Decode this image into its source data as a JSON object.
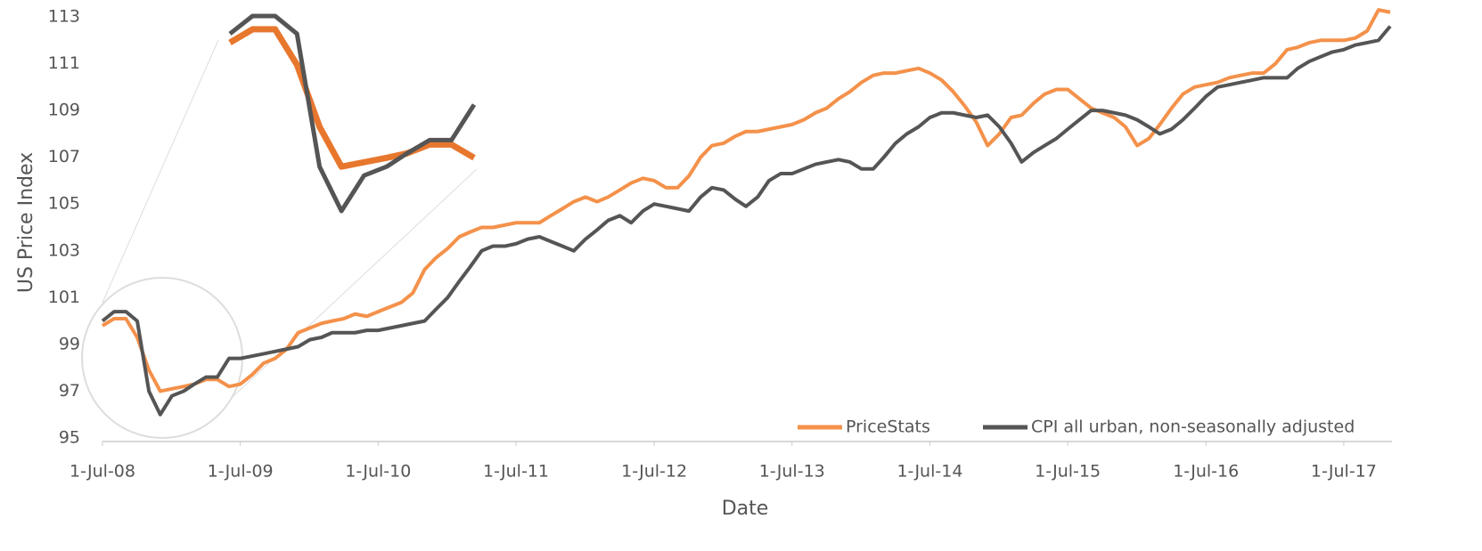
{
  "chart_data": {
    "type": "line",
    "x_label": "Date",
    "y_label": "US Price Index",
    "x": [
      "2008-07-01",
      "2008-08-01",
      "2008-09-01",
      "2008-10-01",
      "2008-11-01",
      "2008-12-01",
      "2009-01-01",
      "2009-02-01",
      "2009-03-01",
      "2009-04-01",
      "2009-05-01",
      "2009-06-01",
      "2009-07-01",
      "2009-08-01",
      "2009-09-01",
      "2009-10-01",
      "2009-11-01",
      "2009-12-01",
      "2010-01-01",
      "2010-02-01",
      "2010-03-01",
      "2010-04-01",
      "2010-05-01",
      "2010-06-01",
      "2010-07-01",
      "2010-08-01",
      "2010-09-01",
      "2010-10-01",
      "2010-11-01",
      "2010-12-01",
      "2011-01-01",
      "2011-02-01",
      "2011-03-01",
      "2011-04-01",
      "2011-05-01",
      "2011-06-01",
      "2011-07-01",
      "2011-08-01",
      "2011-09-01",
      "2011-10-01",
      "2011-11-01",
      "2011-12-01",
      "2012-01-01",
      "2012-02-01",
      "2012-03-01",
      "2012-04-01",
      "2012-05-01",
      "2012-06-01",
      "2012-07-01",
      "2012-08-01",
      "2012-09-01",
      "2012-10-01",
      "2012-11-01",
      "2012-12-01",
      "2013-01-01",
      "2013-02-01",
      "2013-03-01",
      "2013-04-01",
      "2013-05-01",
      "2013-06-01",
      "2013-07-01",
      "2013-08-01",
      "2013-09-01",
      "2013-10-01",
      "2013-11-01",
      "2013-12-01",
      "2014-01-01",
      "2014-02-01",
      "2014-03-01",
      "2014-04-01",
      "2014-05-01",
      "2014-06-01",
      "2014-07-01",
      "2014-08-01",
      "2014-09-01",
      "2014-10-01",
      "2014-11-01",
      "2014-12-01",
      "2015-01-01",
      "2015-02-01",
      "2015-03-01",
      "2015-04-01",
      "2015-05-01",
      "2015-06-01",
      "2015-07-01",
      "2015-08-01",
      "2015-09-01",
      "2015-10-01",
      "2015-11-01",
      "2015-12-01",
      "2016-01-01",
      "2016-02-01",
      "2016-03-01",
      "2016-04-01",
      "2016-05-01",
      "2016-06-01",
      "2016-07-01",
      "2016-08-01",
      "2016-09-01",
      "2016-10-01",
      "2016-11-01",
      "2016-12-01",
      "2017-01-01",
      "2017-02-01",
      "2017-03-01",
      "2017-04-01",
      "2017-05-01",
      "2017-06-01",
      "2017-07-01",
      "2017-08-01",
      "2017-09-01",
      "2017-10-01",
      "2017-11-01"
    ],
    "series": [
      {
        "name": "PriceStats",
        "color": "#f4914a",
        "values": [
          99.8,
          100.1,
          100.1,
          99.3,
          97.9,
          97.0,
          97.1,
          97.2,
          97.3,
          97.5,
          97.5,
          97.2,
          97.3,
          97.7,
          98.2,
          98.4,
          98.8,
          99.5,
          99.7,
          99.9,
          100.0,
          100.1,
          100.3,
          100.2,
          100.4,
          100.6,
          100.8,
          101.2,
          102.2,
          102.7,
          103.1,
          103.6,
          103.8,
          104.0,
          104.0,
          104.1,
          104.2,
          104.2,
          104.2,
          104.5,
          104.8,
          105.1,
          105.3,
          105.1,
          105.3,
          105.6,
          105.9,
          106.1,
          106.0,
          105.7,
          105.7,
          106.2,
          107.0,
          107.5,
          107.6,
          107.9,
          108.1,
          108.1,
          108.2,
          108.3,
          108.4,
          108.6,
          108.9,
          109.1,
          109.5,
          109.8,
          110.2,
          110.5,
          110.6,
          110.6,
          110.7,
          110.8,
          110.6,
          110.3,
          109.8,
          109.2,
          108.5,
          107.5,
          108.0,
          108.7,
          108.8,
          109.3,
          109.7,
          109.9,
          109.9,
          109.5,
          109.1,
          108.9,
          108.7,
          108.3,
          107.5,
          107.8,
          108.4,
          109.1,
          109.7,
          110.0,
          110.1,
          110.2,
          110.4,
          110.5,
          110.6,
          110.6,
          111.0,
          111.6,
          111.7,
          111.9,
          112.0,
          112.0,
          112.0,
          112.1,
          112.4,
          113.3,
          113.2
        ]
      },
      {
        "name": "CPI all urban, non-seasonally adjusted",
        "color": "#555555",
        "values": [
          100.0,
          100.4,
          100.4,
          100.0,
          97.0,
          96.0,
          96.8,
          97.0,
          97.3,
          97.6,
          97.6,
          98.4,
          98.4,
          98.5,
          98.6,
          98.7,
          98.8,
          98.9,
          99.2,
          99.3,
          99.5,
          99.5,
          99.5,
          99.6,
          99.6,
          99.7,
          99.8,
          99.9,
          100.0,
          100.5,
          101.0,
          101.7,
          102.3,
          103.0,
          103.2,
          103.2,
          103.3,
          103.5,
          103.6,
          103.4,
          103.2,
          103.0,
          103.5,
          103.9,
          104.3,
          104.5,
          104.2,
          104.7,
          105.0,
          104.9,
          104.8,
          104.7,
          105.3,
          105.7,
          105.6,
          105.2,
          104.9,
          105.3,
          106.0,
          106.3,
          106.3,
          106.5,
          106.7,
          106.8,
          106.9,
          106.8,
          106.5,
          106.5,
          107.0,
          107.6,
          108.0,
          108.3,
          108.7,
          108.9,
          108.9,
          108.8,
          108.7,
          108.8,
          108.3,
          107.6,
          106.8,
          107.2,
          107.5,
          107.8,
          108.2,
          108.6,
          109.0,
          109.0,
          108.9,
          108.8,
          108.6,
          108.3,
          108.0,
          108.2,
          108.6,
          109.1,
          109.6,
          110.0,
          110.1,
          110.2,
          110.3,
          110.4,
          110.4,
          110.4,
          110.8,
          111.1,
          111.3,
          111.5,
          111.6,
          111.8,
          111.9,
          112.0,
          112.6
        ]
      }
    ],
    "xlim": [
      "2008-07-01",
      "2017-11-01"
    ],
    "xticks": [
      {
        "value": "2008-07-01",
        "label": "1-Jul-08"
      },
      {
        "value": "2009-07-01",
        "label": "1-Jul-09"
      },
      {
        "value": "2010-07-01",
        "label": "1-Jul-10"
      },
      {
        "value": "2011-07-01",
        "label": "1-Jul-11"
      },
      {
        "value": "2012-07-01",
        "label": "1-Jul-12"
      },
      {
        "value": "2013-07-01",
        "label": "1-Jul-13"
      },
      {
        "value": "2014-07-01",
        "label": "1-Jul-14"
      },
      {
        "value": "2015-07-01",
        "label": "1-Jul-15"
      },
      {
        "value": "2016-07-01",
        "label": "1-Jul-16"
      },
      {
        "value": "2017-07-01",
        "label": "1-Jul-17"
      }
    ],
    "ylim": [
      95,
      113
    ],
    "yticks": [
      95,
      97,
      99,
      101,
      103,
      105,
      107,
      109,
      111,
      113
    ],
    "legend": "lower right"
  }
}
